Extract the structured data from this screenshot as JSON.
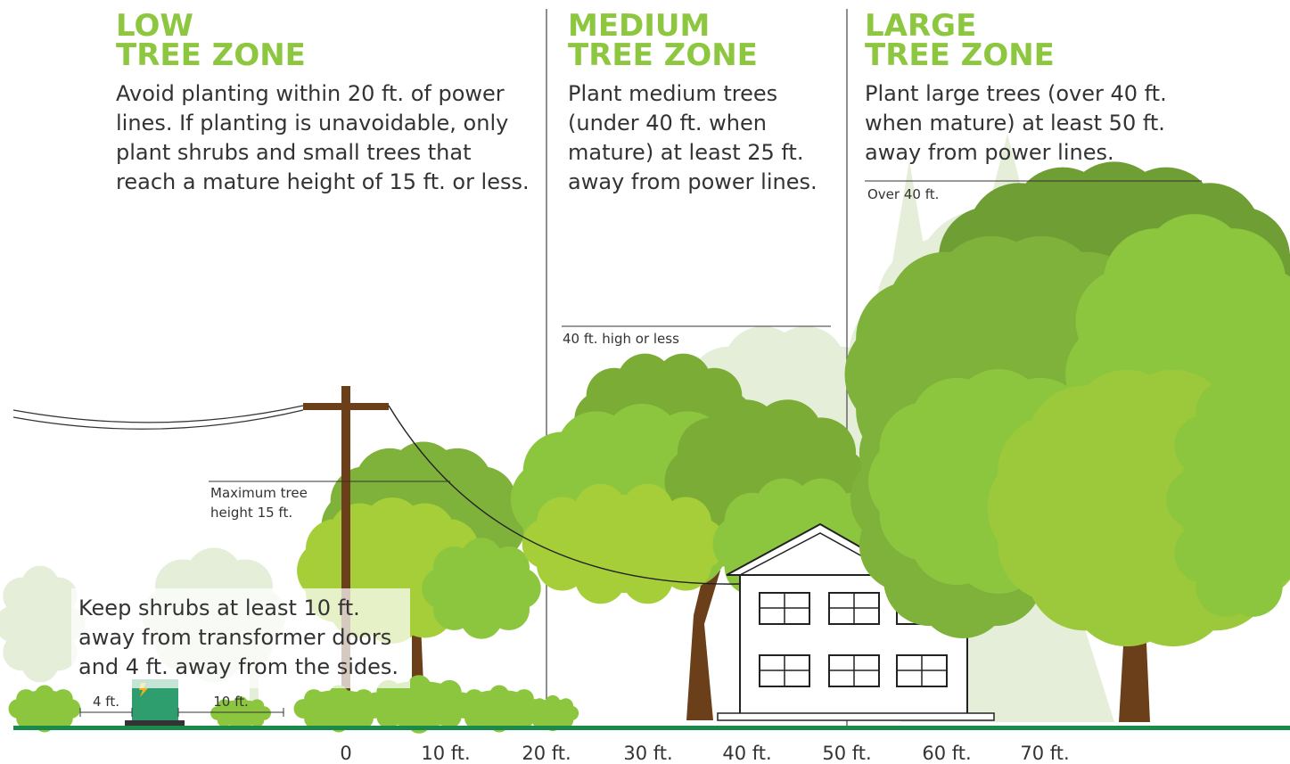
{
  "zones": [
    {
      "title": [
        "LOW",
        "TREE ZONE"
      ],
      "description": [
        "Avoid planting within 20 ft. of power",
        "lines. If planting is unavoidable, only",
        "plant shrubs and small trees that",
        "reach a mature height of 15 ft. or less."
      ]
    },
    {
      "title": [
        "MEDIUM",
        "TREE ZONE"
      ],
      "description": [
        "Plant medium trees",
        "(under 40 ft. when",
        "mature) at least 25 ft.",
        "away from power lines."
      ]
    },
    {
      "title": [
        "LARGE",
        "TREE ZONE"
      ],
      "description": [
        "Plant large trees (over 40 ft.",
        "when mature) at least 50 ft.",
        "away from power lines."
      ]
    }
  ],
  "height_labels": {
    "large": "Over 40 ft.",
    "medium": "40 ft. high or less",
    "low": [
      "Maximum tree",
      "height 15 ft."
    ]
  },
  "transformer_note": [
    "Keep shrubs at least 10 ft.",
    "away from transformer doors",
    "and 4 ft. away from the sides."
  ],
  "clearances": [
    "4 ft.",
    "10 ft."
  ],
  "distance_axis": [
    "0",
    "10 ft.",
    "20 ft.",
    "30 ft.",
    "40 ft.",
    "50 ft.",
    "60 ft.",
    "70 ft."
  ]
}
